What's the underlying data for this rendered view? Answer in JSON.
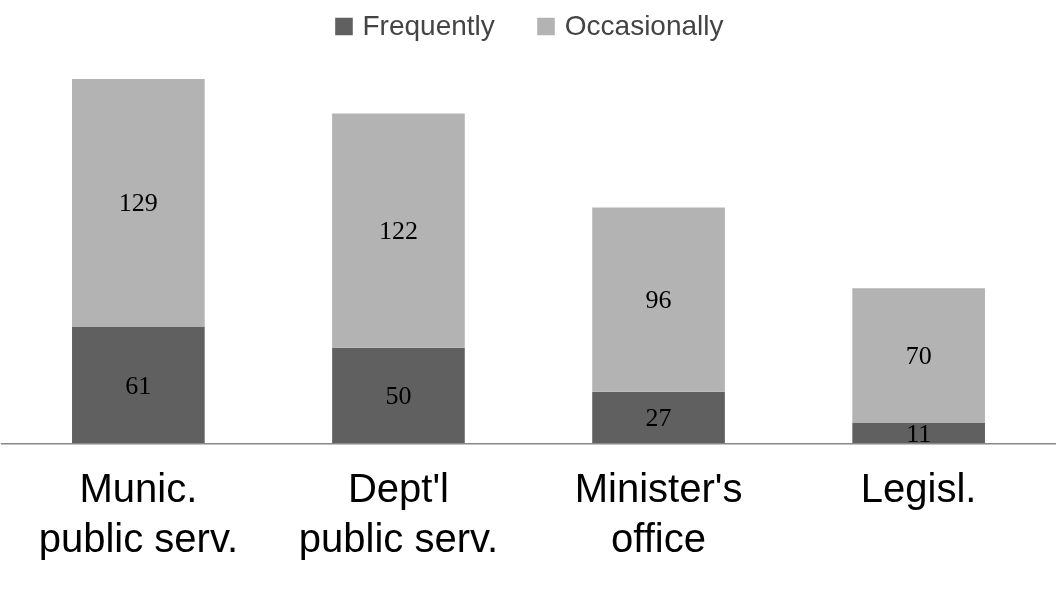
{
  "chart_data": {
    "type": "bar",
    "stacked": true,
    "categories": [
      "Munic.\npublic serv.",
      "Dept'l\npublic serv.",
      "Minister's\noffice",
      "Legisl."
    ],
    "series": [
      {
        "name": "Frequently",
        "color": "#606060",
        "values": [
          61,
          50,
          27,
          11
        ]
      },
      {
        "name": "Occasionally",
        "color": "#b3b3b3",
        "values": [
          129,
          122,
          96,
          70
        ]
      }
    ],
    "data_labels": true,
    "legend": "top",
    "grid": false
  }
}
